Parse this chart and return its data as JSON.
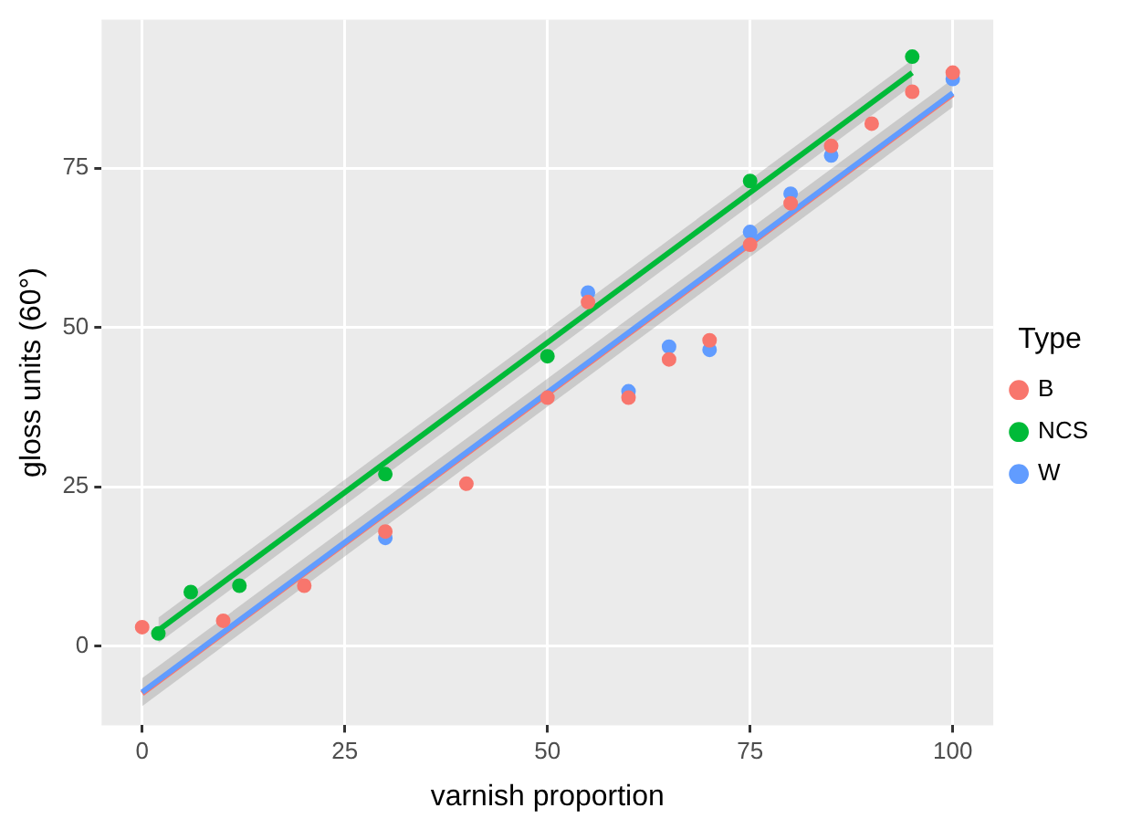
{
  "chart_data": {
    "type": "scatter",
    "xlabel": "varnish proportion",
    "ylabel": "gloss units (60°)",
    "legend_title": "Type",
    "legend": "right",
    "grid": true,
    "marker": "circle",
    "xlim": [
      -5,
      105
    ],
    "ylim": [
      -12.4,
      98.3
    ],
    "xticks": [
      0,
      25,
      50,
      75,
      100
    ],
    "yticks": [
      0,
      25,
      50,
      75
    ],
    "series": [
      {
        "name": "B",
        "color": "#f8766d",
        "x": [
          0,
          10,
          20,
          30,
          40,
          50,
          55,
          60,
          65,
          70,
          75,
          80,
          85,
          90,
          95,
          100
        ],
        "values": [
          3,
          4,
          9.5,
          18,
          25.5,
          39,
          54,
          39,
          45,
          48,
          63,
          69.5,
          78.5,
          82,
          87,
          90
        ]
      },
      {
        "name": "NCS",
        "color": "#00ba38",
        "x": [
          2,
          6,
          12,
          30,
          50,
          75,
          95
        ],
        "values": [
          2,
          8.5,
          9.5,
          27,
          45.5,
          73,
          92.5
        ]
      },
      {
        "name": "W",
        "color": "#619cff",
        "x": [
          30,
          55,
          60,
          65,
          70,
          75,
          80,
          85,
          100
        ],
        "values": [
          17,
          55.5,
          40,
          47,
          46.5,
          65,
          71,
          77,
          89
        ]
      },
      {
        "type": "line",
        "marker": "none",
        "color": "#f8766d",
        "x": [
          0,
          100
        ],
        "values": [
          -7.4,
          86.6
        ]
      },
      {
        "type": "line",
        "marker": "none",
        "color": "#00ba38",
        "x": [
          2,
          95
        ],
        "values": [
          2.5,
          90
        ],
        "lower": [
          0.5,
          88
        ],
        "upper": [
          4.5,
          92
        ]
      },
      {
        "type": "line",
        "marker": "none",
        "color": "#619cff",
        "x": [
          0,
          100
        ],
        "values": [
          -7.2,
          86.8
        ],
        "lower": [
          -9.4,
          84.6
        ],
        "upper": [
          -5.0,
          89
        ]
      }
    ]
  }
}
